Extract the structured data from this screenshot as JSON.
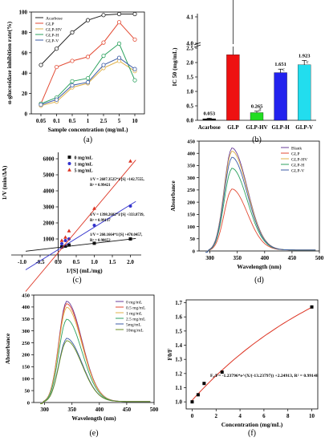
{
  "chart_data": [
    {
      "type": "line",
      "panel_label": "(a)",
      "ylabel": "α-glucosidase inhibition rate(%)",
      "xlabel": "Sample concentration (mg/mL)",
      "categories": [
        "0.05",
        "0.1",
        "0.5",
        "1",
        "2.5",
        "5",
        "10"
      ],
      "yticks": [
        "0",
        "20",
        "40",
        "60",
        "80",
        "100"
      ],
      "ylim": [
        0,
        100
      ],
      "legend_position": "top-left",
      "series": [
        {
          "name": "Acarbose",
          "color": "#222222",
          "values": [
            48,
            64,
            80,
            92,
            97,
            98,
            98
          ]
        },
        {
          "name": "GLP",
          "color": "#e34a33",
          "values": [
            10,
            46,
            52,
            56,
            70,
            90,
            73
          ]
        },
        {
          "name": "GLP-HV",
          "color": "#e0b24a",
          "values": [
            8,
            12,
            26,
            30,
            45,
            52,
            42
          ]
        },
        {
          "name": "GLP-H",
          "color": "#2ca25f",
          "values": [
            10,
            16,
            32,
            35,
            57,
            69,
            33
          ]
        },
        {
          "name": "GLP-V",
          "color": "#3b5ba5",
          "values": [
            9,
            14,
            28,
            31,
            48,
            55,
            44
          ]
        }
      ]
    },
    {
      "type": "bar",
      "panel_label": "(b)",
      "ylabel": "IC 50 (mg/mL)",
      "categories": [
        "Acarbose",
        "GLP",
        "GLP-HV",
        "GLP-H",
        "GLP-V"
      ],
      "values": [
        0.053,
        3.957,
        0.265,
        1.651,
        1.923
      ],
      "value_labels": [
        "0.053",
        "3.957",
        "0.265",
        "1.651",
        "1.923"
      ],
      "sig_labels": [
        "",
        "",
        "d",
        "c",
        "c"
      ],
      "colors": [
        "#111111",
        "#ee1111",
        "#22dd22",
        "#2222ee",
        "#22ddee"
      ],
      "errors": [
        0.02,
        0.45,
        0.05,
        0.12,
        0.15
      ],
      "yticks": [
        "0.0",
        "0.5",
        "1.0",
        "1.5",
        "2.0",
        "2.5",
        "4.0",
        "4.1"
      ],
      "ylim": [
        0,
        4.1
      ]
    },
    {
      "type": "scatter",
      "panel_label": "(c)",
      "ylabel": "1/V (min/ΔA)",
      "xlabel": "1/[S] (mL/mg)",
      "xticks": [
        "-1.0",
        "-0.5",
        "0.0",
        "0.5",
        "1.0",
        "1.5",
        "2.0"
      ],
      "yticks": [
        "1000",
        "2000",
        "3000",
        "4000",
        "5000",
        "6000"
      ],
      "xlim": [
        -1.3,
        2.3
      ],
      "ylim": [
        -400,
        6400
      ],
      "series": [
        {
          "name": "0 mg/mL",
          "color": "#111111",
          "marker": "square",
          "x": [
            0.1,
            0.2,
            0.3,
            1.0,
            2.0
          ],
          "y": [
            500,
            550,
            620,
            730,
            1000
          ],
          "slope": 260.2,
          "intercept": 470
        },
        {
          "name": "1 mg/mL",
          "color": "#3333cc",
          "marker": "circle",
          "x": [
            0.1,
            0.2,
            0.3,
            1.0,
            2.0
          ],
          "y": [
            700,
            900,
            1000,
            1850,
            3050
          ],
          "slope": 1398.3,
          "intercept": 333.9
        },
        {
          "name": "5 mg/mL",
          "color": "#dd3322",
          "marker": "triangle",
          "x": [
            0.1,
            0.2,
            0.3,
            1.0,
            2.0
          ],
          "y": [
            900,
            1100,
            1500,
            2900,
            5850
          ],
          "slope": 2687.4,
          "intercept": 142.8
        }
      ],
      "equations": [
        "1/V = 2687.3525*1/[S] +142.7555,",
        "R² = 0.99421",
        "1/V = 1398.2682*1/[S] +333.8739,",
        "R² = 0.99137",
        "1/V = 260.1664*1/[S] +470.0457,",
        "R² = 0.98652"
      ]
    },
    {
      "type": "line",
      "panel_label": "(d)",
      "ylabel": "Absorbance",
      "xlabel": "Wavelength (nm)",
      "xticks": [
        "300",
        "350",
        "400",
        "450",
        "500"
      ],
      "yticks": [
        "0",
        "50",
        "100",
        "150",
        "200",
        "250",
        "300",
        "350",
        "400",
        "450"
      ],
      "xlim": [
        280,
        500
      ],
      "ylim": [
        0,
        450
      ],
      "legend_position": "top-right",
      "series": [
        {
          "name": "Blank",
          "color": "#6a3d9a",
          "peak": 418
        },
        {
          "name": "GLP",
          "color": "#e34a33",
          "peak": 250
        },
        {
          "name": "GLP-HV",
          "color": "#e0b24a",
          "peak": 405
        },
        {
          "name": "GLP-H",
          "color": "#2ca25f",
          "peak": 335
        },
        {
          "name": "GLP-V",
          "color": "#3b5ba5",
          "peak": 380
        }
      ]
    },
    {
      "type": "line",
      "panel_label": "(e)",
      "ylabel": "Absorbance",
      "xlabel": "Wavelength (nm)",
      "xticks": [
        "300",
        "350",
        "400",
        "450",
        "500"
      ],
      "yticks": [
        "0",
        "50",
        "100",
        "150",
        "200",
        "250",
        "300",
        "350",
        "400",
        "450"
      ],
      "xlim": [
        280,
        500
      ],
      "ylim": [
        0,
        450
      ],
      "legend_position": "top-right",
      "series": [
        {
          "name": "0 mg/mL",
          "color": "#6a3d9a",
          "peak": 420
        },
        {
          "name": "0.5 mg/mL",
          "color": "#e34a33",
          "peak": 410
        },
        {
          "name": "1 mg/mL",
          "color": "#e0b24a",
          "peak": 395
        },
        {
          "name": "2.5 mg/mL",
          "color": "#2ca25f",
          "peak": 345
        },
        {
          "name": "5mg/mL",
          "color": "#3b5ba5",
          "peak": 265
        },
        {
          "name": "10mg/mL",
          "color": "#6b8e23",
          "peak": 255
        }
      ]
    },
    {
      "type": "scatter",
      "panel_label": "(f)",
      "ylabel": "F0/F",
      "xlabel": "Concentration (mg/mL)",
      "xticks": [
        "0",
        "2",
        "4",
        "6",
        "8",
        "10"
      ],
      "yticks": [
        "1.0",
        "1.1",
        "1.2",
        "1.3",
        "1.4",
        "1.5",
        "1.6",
        "1.7"
      ],
      "xlim": [
        -0.5,
        10.5
      ],
      "ylim": [
        0.95,
        1.72
      ],
      "x": [
        0,
        0.5,
        1,
        2.5,
        10
      ],
      "y": [
        1.0,
        1.05,
        1.13,
        1.21,
        1.67
      ],
      "fit_color": "#dd3322",
      "equation": "F₀/F= -1.23796*e^(X/(-13.23797)) +2.24913, R² = 0.99148"
    }
  ]
}
